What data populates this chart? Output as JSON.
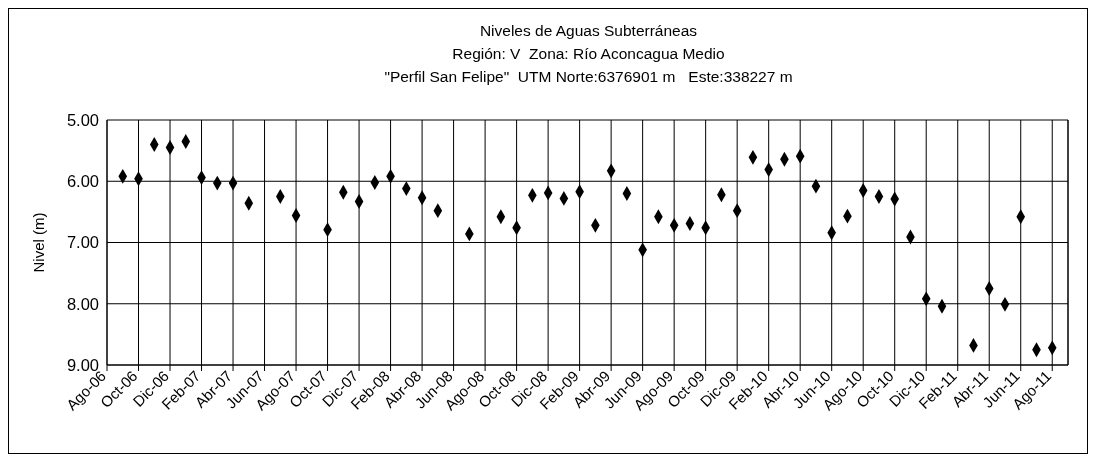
{
  "chart_data": {
    "type": "scatter",
    "title": "Niveles de Aguas Subterráneas",
    "subtitle": "Región: V  Zona: Río Aconcagua Medio\n\"Perfil San Felipe\"  UTM Norte:6376901 m   Este:338227 m",
    "ylabel": "Nivel (m)",
    "x": [
      "2006-09",
      "2006-10",
      "2006-11",
      "2006-12",
      "2007-01",
      "2007-02",
      "2007-03",
      "2007-04",
      "2007-05",
      "2007-07",
      "2007-08",
      "2007-10",
      "2007-11",
      "2007-12",
      "2008-01",
      "2008-02",
      "2008-03",
      "2008-04",
      "2008-05",
      "2008-07",
      "2008-09",
      "2008-10",
      "2008-11",
      "2008-12",
      "2009-01",
      "2009-02",
      "2009-03",
      "2009-04",
      "2009-05",
      "2009-06",
      "2009-07",
      "2009-08",
      "2009-09",
      "2009-10",
      "2009-11",
      "2009-12",
      "2010-01",
      "2010-02",
      "2010-03",
      "2010-04",
      "2010-05",
      "2010-06",
      "2010-07",
      "2010-08",
      "2010-09",
      "2010-10",
      "2010-11",
      "2010-12",
      "2011-01",
      "2011-03",
      "2011-04",
      "2011-05",
      "2011-06",
      "2011-07",
      "2011-08"
    ],
    "values": [
      5.92,
      5.96,
      5.4,
      5.45,
      5.35,
      5.94,
      6.03,
      6.03,
      6.36,
      6.25,
      6.56,
      6.79,
      6.18,
      6.33,
      6.02,
      5.92,
      6.12,
      6.27,
      6.48,
      6.86,
      6.58,
      6.76,
      6.23,
      6.19,
      6.28,
      6.17,
      6.72,
      5.83,
      6.2,
      7.12,
      6.58,
      6.72,
      6.69,
      6.76,
      6.22,
      6.48,
      5.61,
      5.81,
      5.64,
      5.59,
      6.08,
      6.84,
      6.57,
      6.15,
      6.25,
      6.29,
      6.91,
      7.92,
      8.04,
      8.68,
      7.75,
      8.01,
      6.58,
      8.75,
      8.72
    ],
    "color": "#000000",
    "marker": "diamond",
    "grid": true,
    "xlim": [
      "2006-08",
      "2011-09"
    ],
    "xticks": [
      {
        "value": "2006-08",
        "label": "Ago-06"
      },
      {
        "value": "2006-10",
        "label": "Oct-06"
      },
      {
        "value": "2006-12",
        "label": "Dic-06"
      },
      {
        "value": "2007-02",
        "label": "Feb-07"
      },
      {
        "value": "2007-04",
        "label": "Abr-07"
      },
      {
        "value": "2007-06",
        "label": "Jun-07"
      },
      {
        "value": "2007-08",
        "label": "Ago-07"
      },
      {
        "value": "2007-10",
        "label": "Oct-07"
      },
      {
        "value": "2007-12",
        "label": "Dic-07"
      },
      {
        "value": "2008-02",
        "label": "Feb-08"
      },
      {
        "value": "2008-04",
        "label": "Abr-08"
      },
      {
        "value": "2008-06",
        "label": "Jun-08"
      },
      {
        "value": "2008-08",
        "label": "Ago-08"
      },
      {
        "value": "2008-10",
        "label": "Oct-08"
      },
      {
        "value": "2008-12",
        "label": "Dic-08"
      },
      {
        "value": "2009-02",
        "label": "Feb-09"
      },
      {
        "value": "2009-04",
        "label": "Abr-09"
      },
      {
        "value": "2009-06",
        "label": "Jun-09"
      },
      {
        "value": "2009-08",
        "label": "Ago-09"
      },
      {
        "value": "2009-10",
        "label": "Oct-09"
      },
      {
        "value": "2009-12",
        "label": "Dic-09"
      },
      {
        "value": "2010-02",
        "label": "Feb-10"
      },
      {
        "value": "2010-04",
        "label": "Abr-10"
      },
      {
        "value": "2010-06",
        "label": "Jun-10"
      },
      {
        "value": "2010-08",
        "label": "Ago-10"
      },
      {
        "value": "2010-10",
        "label": "Oct-10"
      },
      {
        "value": "2010-12",
        "label": "Dic-10"
      },
      {
        "value": "2011-02",
        "label": "Feb-11"
      },
      {
        "value": "2011-04",
        "label": "Abr-11"
      },
      {
        "value": "2011-06",
        "label": "Jun-11"
      },
      {
        "value": "2011-08",
        "label": "Ago-11"
      }
    ],
    "ylim": [
      9,
      5
    ],
    "yticks": [
      {
        "value": 5,
        "label": "5.00"
      },
      {
        "value": 6,
        "label": "6.00"
      },
      {
        "value": 7,
        "label": "7.00"
      },
      {
        "value": 8,
        "label": "8.00"
      },
      {
        "value": 9,
        "label": "9.00"
      }
    ]
  }
}
